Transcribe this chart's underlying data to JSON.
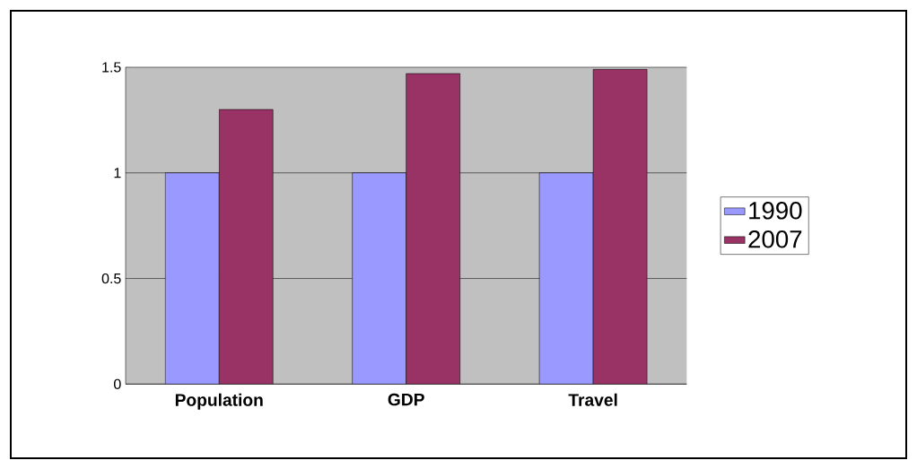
{
  "chart_data": {
    "type": "bar",
    "categories": [
      "Population",
      "GDP",
      "Travel"
    ],
    "series": [
      {
        "name": "1990",
        "color": "#9999ff",
        "values": [
          1,
          1,
          1
        ]
      },
      {
        "name": "2007",
        "color": "#993366",
        "values": [
          1.3,
          1.47,
          1.49
        ]
      }
    ],
    "ylim": [
      0,
      1.5
    ],
    "yticks": [
      0,
      0.5,
      1,
      1.5
    ],
    "grid": "y",
    "legend": "right"
  }
}
